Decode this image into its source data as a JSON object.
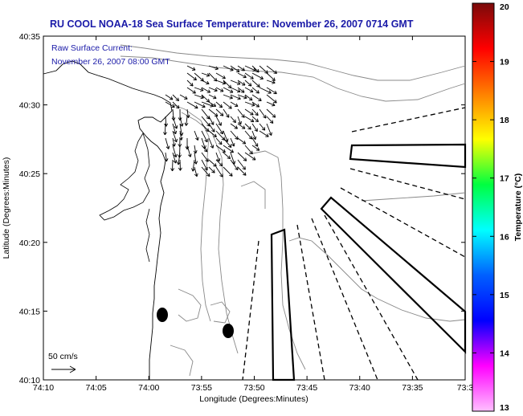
{
  "title": "RU COOL  NOAA-18  Sea Surface Temperature:  November 26, 2007 0714 GMT",
  "current_label_1": "Raw Surface Current:",
  "current_label_2": "November 26, 2007 08:00 GMT",
  "scale_label": "50 cm/s",
  "xlabel": "Longitude (Degrees:Minutes)",
  "ylabel": "Latitude (Degrees:Minutes)",
  "x_ticks": [
    "74:10",
    "74:05",
    "74:00",
    "73:55",
    "73:50",
    "73:45",
    "73:40",
    "73:35",
    "73:3"
  ],
  "y_ticks": [
    "40:35",
    "40:30",
    "40:25",
    "40:20",
    "40:15",
    "40:10"
  ],
  "colorbar": {
    "label": "Temperature (°C)",
    "ticks": [
      "20",
      "19",
      "18",
      "17",
      "16",
      "15",
      "14",
      "13"
    ],
    "colors": [
      "#7a0a0a",
      "#ff0000",
      "#ff8000",
      "#ffff00",
      "#00ff40",
      "#00ffff",
      "#0060ff",
      "#0000ff",
      "#ff00ff",
      "#ffc0ff"
    ]
  }
}
